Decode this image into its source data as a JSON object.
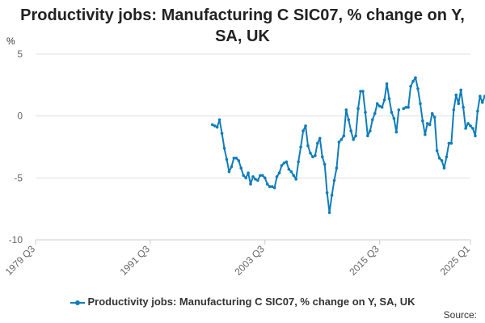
{
  "chart_data": {
    "type": "line",
    "title": "Productivity jobs: Manufacturing C SIC07, % change on Y, SA, UK",
    "ylabel": "%",
    "ylim": [
      -10,
      5
    ],
    "y_ticks": [
      5,
      0,
      -5,
      -10
    ],
    "x_ticks": [
      "1979 Q3",
      "1991 Q3",
      "2003 Q3",
      "2015 Q3",
      "2025 Q1"
    ],
    "grid": true,
    "legend_position": "bottom",
    "series": [
      {
        "name": "Productivity jobs: Manufacturing C SIC07, % change on Y, SA, UK",
        "color": "#0F7DB9",
        "start": "1998 Q1",
        "values": [
          -0.7,
          -0.8,
          -0.9,
          -0.3,
          -1.4,
          -2.6,
          -3.5,
          -4.5,
          -4.1,
          -3.4,
          -3.4,
          -3.6,
          -4.2,
          -4.8,
          -5.0,
          -4.6,
          -5.5,
          -4.9,
          -5.1,
          -5.2,
          -4.8,
          -4.8,
          -5.0,
          -5.5,
          -5.7,
          -5.7,
          -5.8,
          -4.9,
          -4.6,
          -4.0,
          -3.8,
          -3.7,
          -4.3,
          -4.5,
          -4.8,
          -5.1,
          -3.7,
          -2.5,
          -1.2,
          -0.8,
          -2.4,
          -3.0,
          -3.3,
          -3.2,
          -2.2,
          -1.8,
          -3.3,
          -3.9,
          -6.2,
          -7.8,
          -6.4,
          -5.2,
          -4.2,
          -2.1,
          -1.9,
          -1.6,
          0.5,
          -0.3,
          -1.2,
          -1.9,
          -1.6,
          0.6,
          2.0,
          2.0,
          0.3,
          -1.6,
          -1.2,
          -0.3,
          0.2,
          1.0,
          0.8,
          0.7,
          1.3,
          2.6,
          1.4,
          0.3,
          -0.2,
          -1.3,
          0.5,
          null,
          0.6,
          0.7,
          0.7,
          2.4,
          2.8,
          3.1,
          2.2,
          1.0,
          -0.4,
          -1.5,
          -0.6,
          -0.7,
          0.2,
          -0.1,
          -2.8,
          -3.4,
          -3.6,
          -4.2,
          -3.3,
          -2.2,
          -2.2,
          0.5,
          1.7,
          1.0,
          2.1,
          0.7,
          -1.0,
          -0.6,
          -0.8,
          -1.0,
          -1.6,
          0.4,
          1.6,
          1.1,
          1.6
        ]
      }
    ]
  },
  "legend": {
    "label": "Productivity jobs: Manufacturing C SIC07, % change on Y, SA, UK"
  },
  "source_label": "Source:"
}
